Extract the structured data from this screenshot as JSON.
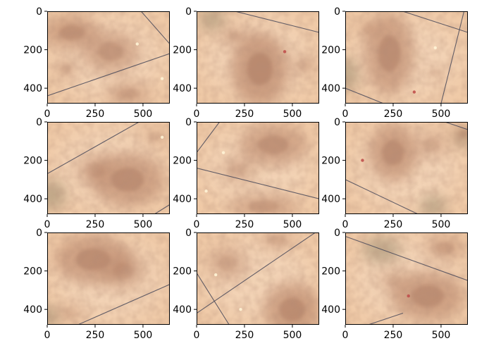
{
  "figure": {
    "grid": {
      "rows": 3,
      "cols": 3
    },
    "image_extent": {
      "x_max": 640,
      "y_max": 480
    },
    "x_ticks": [
      0,
      250,
      500
    ],
    "y_ticks": [
      0,
      200,
      400
    ],
    "x_tick_labels": [
      "0",
      "250",
      "500"
    ],
    "y_tick_labels": [
      "0",
      "200",
      "400"
    ],
    "colors": {
      "skin_base": "#efc9a6",
      "skin_light": "#f6dcc3",
      "lesion": "#b98467",
      "lesion_dark": "#9e6a52",
      "shadow": "#9c8c70",
      "hair": "#4a4a5a",
      "highlight": "#fff4d6"
    },
    "panels": [
      {
        "name": "augmented-dermoscopy-sample-1"
      },
      {
        "name": "augmented-dermoscopy-sample-2"
      },
      {
        "name": "augmented-dermoscopy-sample-3"
      },
      {
        "name": "augmented-dermoscopy-sample-4"
      },
      {
        "name": "augmented-dermoscopy-sample-5"
      },
      {
        "name": "augmented-dermoscopy-sample-6"
      },
      {
        "name": "augmented-dermoscopy-sample-7"
      },
      {
        "name": "augmented-dermoscopy-sample-8"
      },
      {
        "name": "augmented-dermoscopy-sample-9"
      }
    ]
  }
}
